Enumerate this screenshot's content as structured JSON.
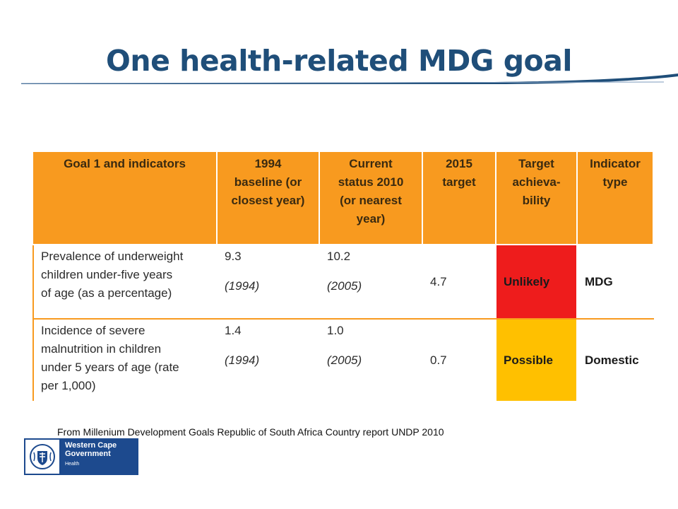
{
  "slide": {
    "title": "One health-related MDG goal",
    "source": "From Millenium Development Goals Republic of South Africa Country report UNDP 2010"
  },
  "table": {
    "headers": [
      [
        "Goal 1 and indicators"
      ],
      [
        "1994",
        "baseline (or",
        "closest year)"
      ],
      [
        "Current",
        "status 2010",
        "(or nearest",
        "year)"
      ],
      [
        "2015",
        "target"
      ],
      [
        "Target",
        "achieva-",
        "bility"
      ],
      [
        "Indicator",
        "type"
      ]
    ],
    "rows": [
      {
        "indicator": [
          "Prevalence of underweight",
          "children under-five years",
          "of age (as a percentage)"
        ],
        "baseline_value": "9.3",
        "baseline_year": "(1994)",
        "current_value": "10.2",
        "current_year": "(2005)",
        "target_2015": "4.7",
        "achievability": "Unlikely",
        "achievability_color": "#ee1c1c",
        "type": "MDG"
      },
      {
        "indicator": [
          "Incidence of severe",
          "malnutrition in children",
          "under 5 years of age (rate",
          "per 1,000)"
        ],
        "baseline_value": "1.4",
        "baseline_year": "(1994)",
        "current_value": "1.0",
        "current_year": "(2005)",
        "target_2015": "0.7",
        "achievability": "Possible",
        "achievability_color": "#ffc000",
        "type": "Domestic"
      }
    ]
  },
  "logo": {
    "org_line1": "Western Cape",
    "org_line2": "Government",
    "dept": "Health",
    "icon": "coat-of-arms-icon"
  },
  "colors": {
    "title": "#1f4e79",
    "header_bg": "#f89a1f",
    "logo_bg": "#1d4a8e"
  }
}
